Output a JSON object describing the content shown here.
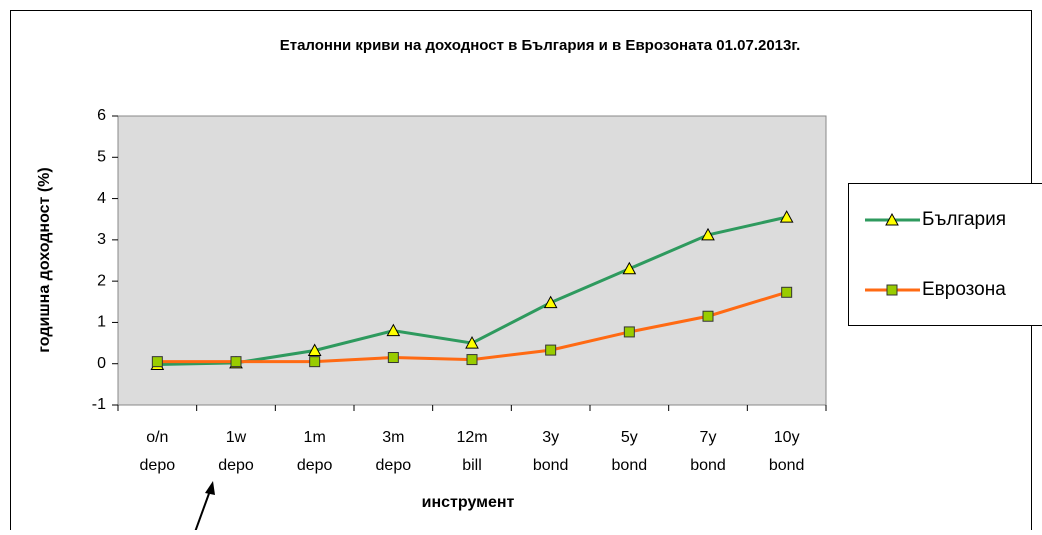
{
  "chart_data": {
    "type": "line",
    "title": "Еталонни криви на доходност в България и в Еврозоната 01.07.2013г.",
    "xlabel": "инструмент",
    "ylabel": "годишна доходност (%)",
    "categories": [
      "o/n depo",
      "1w depo",
      "1m depo",
      "3m depo",
      "12m bill",
      "3y bond",
      "5y bond",
      "7y bond",
      "10y bond"
    ],
    "series": [
      {
        "name": "България",
        "color": "#2e9a5e",
        "marker": "triangle",
        "values": [
          -0.02,
          0.02,
          0.32,
          0.8,
          0.5,
          1.48,
          2.3,
          3.12,
          3.55
        ]
      },
      {
        "name": "Еврозона",
        "color": "#ff6a13",
        "marker": "square",
        "values": [
          0.05,
          0.05,
          0.05,
          0.15,
          0.1,
          0.33,
          0.77,
          1.15,
          1.73
        ]
      }
    ],
    "ylim": [
      -1,
      6
    ],
    "yticks": [
      -1,
      0,
      1,
      2,
      3,
      4,
      5,
      6
    ],
    "grid": false,
    "legend": "right"
  }
}
